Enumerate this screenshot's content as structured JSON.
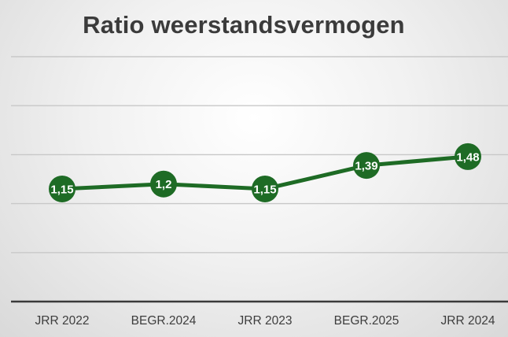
{
  "chart_data": {
    "type": "line",
    "title": "Ratio weerstandsvermogen",
    "categories": [
      "JRR 2022",
      "BEGR.2024",
      "JRR 2023",
      "BEGR.2025",
      "JRR 2024"
    ],
    "values": [
      1.15,
      1.2,
      1.15,
      1.39,
      1.48
    ],
    "data_labels": [
      "1,15",
      "1,2",
      "1,15",
      "1,39",
      "1,48"
    ],
    "xlabel": "",
    "ylabel": "",
    "ylim": [
      0,
      2.5
    ],
    "yticks": [
      0,
      0.5,
      1,
      1.5,
      2,
      2.5
    ],
    "grid": true,
    "legend": "none",
    "colors": {
      "line": "#1e6b25",
      "marker": "#1e6b25",
      "label": "#ffffff",
      "grid": "#c8c8c8",
      "axis": "#3a3a3a"
    }
  }
}
